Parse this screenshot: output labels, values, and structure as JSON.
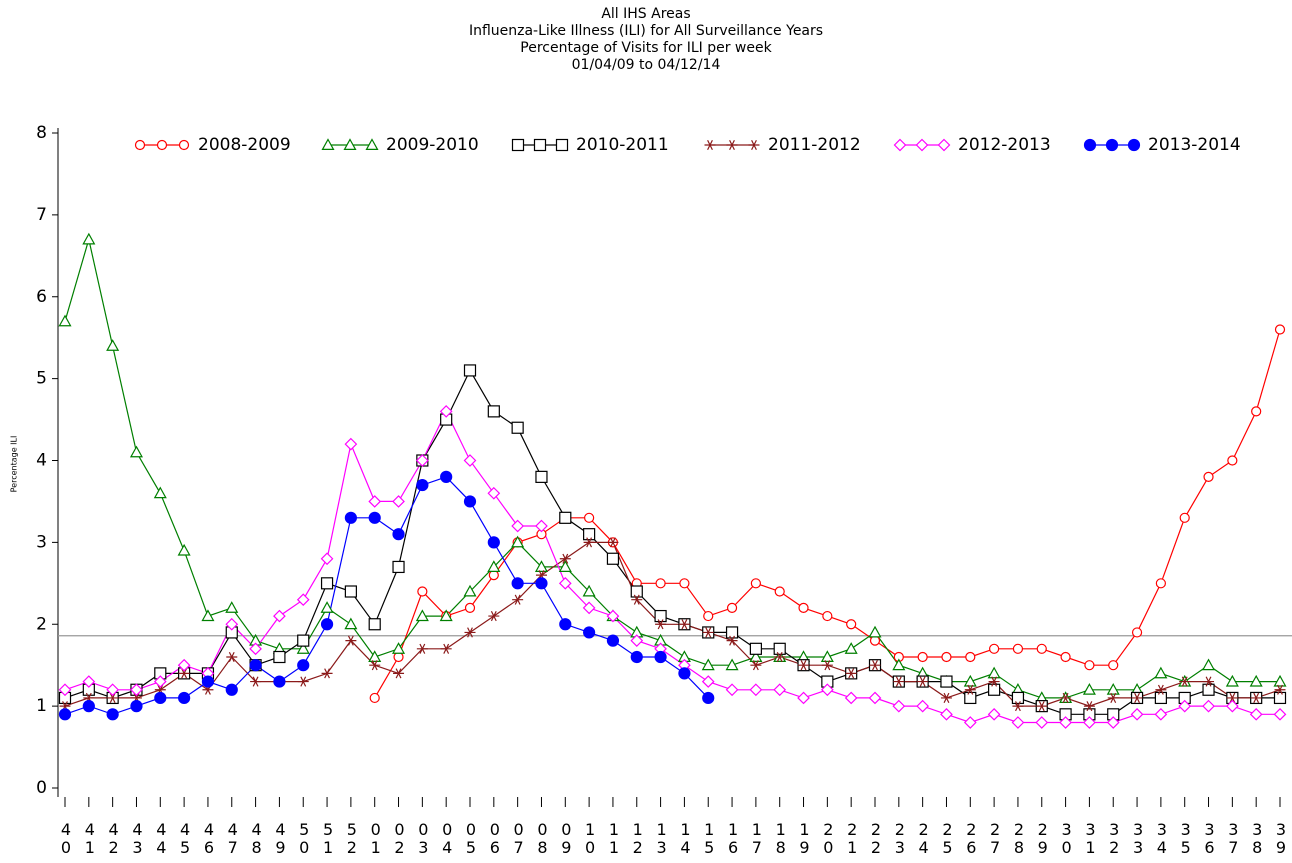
{
  "chart_data": {
    "type": "line",
    "title": [
      "All IHS Areas",
      "Influenza-Like Illness (ILI) for All Surveillance Years",
      "Percentage of Visits for ILI per week",
      "01/04/09 to 04/12/14"
    ],
    "y_label": "Percentage ILI",
    "categories": [
      "40",
      "41",
      "42",
      "43",
      "44",
      "45",
      "46",
      "47",
      "48",
      "49",
      "50",
      "51",
      "52",
      "01",
      "02",
      "03",
      "04",
      "05",
      "06",
      "07",
      "08",
      "09",
      "10",
      "11",
      "12",
      "13",
      "14",
      "15",
      "16",
      "17",
      "18",
      "19",
      "20",
      "21",
      "22",
      "23",
      "24",
      "25",
      "26",
      "27",
      "28",
      "29",
      "30",
      "31",
      "32",
      "33",
      "34",
      "35",
      "36",
      "37",
      "38",
      "39"
    ],
    "ylim": [
      0,
      8
    ],
    "yticks": [
      0,
      1,
      2,
      3,
      4,
      5,
      6,
      7,
      8
    ],
    "reference_line": 1.86,
    "legend": "top",
    "series": [
      {
        "name": "2008-2009",
        "color": "#ff0000",
        "marker": "circle-open",
        "values": [
          null,
          null,
          null,
          null,
          null,
          null,
          null,
          null,
          null,
          null,
          null,
          null,
          null,
          1.1,
          1.6,
          2.4,
          2.1,
          2.2,
          2.6,
          3.0,
          3.1,
          3.3,
          3.3,
          3.0,
          2.5,
          2.5,
          2.5,
          2.1,
          2.2,
          2.5,
          2.4,
          2.2,
          2.1,
          2.0,
          1.8,
          1.6,
          1.6,
          1.6,
          1.6,
          1.7,
          1.7,
          1.7,
          1.6,
          1.5,
          1.5,
          1.9,
          2.5,
          3.3,
          3.8,
          4.0,
          4.6,
          5.6
        ]
      },
      {
        "name": "2009-2010",
        "color": "#007f00",
        "marker": "triangle-open",
        "values": [
          5.7,
          6.7,
          5.4,
          4.1,
          3.6,
          2.9,
          2.1,
          2.2,
          1.8,
          1.7,
          1.7,
          2.2,
          2.0,
          1.6,
          1.7,
          2.1,
          2.1,
          2.4,
          2.7,
          3.0,
          2.7,
          2.7,
          2.4,
          2.1,
          1.9,
          1.8,
          1.6,
          1.5,
          1.5,
          1.6,
          1.6,
          1.6,
          1.6,
          1.7,
          1.9,
          1.5,
          1.4,
          1.3,
          1.3,
          1.4,
          1.2,
          1.1,
          1.1,
          1.2,
          1.2,
          1.2,
          1.4,
          1.3,
          1.5,
          1.3,
          1.3,
          1.3
        ]
      },
      {
        "name": "2010-2011",
        "color": "#000000",
        "marker": "square-open",
        "values": [
          1.1,
          1.2,
          1.1,
          1.2,
          1.4,
          1.4,
          1.4,
          1.9,
          1.5,
          1.6,
          1.8,
          2.5,
          2.4,
          2.0,
          2.7,
          4.0,
          4.5,
          5.1,
          4.6,
          4.4,
          3.8,
          3.3,
          3.1,
          2.8,
          2.4,
          2.1,
          2.0,
          1.9,
          1.9,
          1.7,
          1.7,
          1.5,
          1.3,
          1.4,
          1.5,
          1.3,
          1.3,
          1.3,
          1.1,
          1.2,
          1.1,
          1.0,
          0.9,
          0.9,
          0.9,
          1.1,
          1.1,
          1.1,
          1.2,
          1.1,
          1.1,
          1.1
        ]
      },
      {
        "name": "2011-2012",
        "color": "#8b1a1a",
        "marker": "star",
        "values": [
          1.0,
          1.1,
          1.1,
          1.1,
          1.2,
          1.4,
          1.2,
          1.6,
          1.3,
          1.3,
          1.3,
          1.4,
          1.8,
          1.5,
          1.4,
          1.7,
          1.7,
          1.9,
          2.1,
          2.3,
          2.6,
          2.8,
          3.0,
          3.0,
          2.3,
          2.0,
          2.0,
          1.9,
          1.8,
          1.5,
          1.6,
          1.5,
          1.5,
          1.4,
          1.5,
          1.3,
          1.3,
          1.1,
          1.2,
          1.3,
          1.0,
          1.0,
          1.1,
          1.0,
          1.1,
          1.1,
          1.2,
          1.3,
          1.3,
          1.1,
          1.1,
          1.2
        ]
      },
      {
        "name": "2012-2013",
        "color": "#ff00ff",
        "marker": "diamond-open",
        "values": [
          1.2,
          1.3,
          1.2,
          1.2,
          1.3,
          1.5,
          1.4,
          2.0,
          1.7,
          2.1,
          2.3,
          2.8,
          4.2,
          3.5,
          3.5,
          4.0,
          4.6,
          4.0,
          3.6,
          3.2,
          3.2,
          2.5,
          2.2,
          2.1,
          1.8,
          1.7,
          1.5,
          1.3,
          1.2,
          1.2,
          1.2,
          1.1,
          1.2,
          1.1,
          1.1,
          1.0,
          1.0,
          0.9,
          0.8,
          0.9,
          0.8,
          0.8,
          0.8,
          0.8,
          0.8,
          0.9,
          0.9,
          1.0,
          1.0,
          1.0,
          0.9,
          0.9
        ]
      },
      {
        "name": "2013-2014",
        "color": "#0000ff",
        "marker": "circle-filled",
        "values": [
          0.9,
          1.0,
          0.9,
          1.0,
          1.1,
          1.1,
          1.3,
          1.2,
          1.5,
          1.3,
          1.5,
          2.0,
          3.3,
          3.3,
          3.1,
          3.7,
          3.8,
          3.5,
          3.0,
          2.5,
          2.5,
          2.0,
          1.9,
          1.8,
          1.6,
          1.6,
          1.4,
          1.1,
          null,
          null,
          null,
          null,
          null,
          null,
          null,
          null,
          null,
          null,
          null,
          null,
          null,
          null,
          null,
          null,
          null,
          null,
          null,
          null,
          null,
          null,
          null,
          null
        ]
      }
    ]
  }
}
